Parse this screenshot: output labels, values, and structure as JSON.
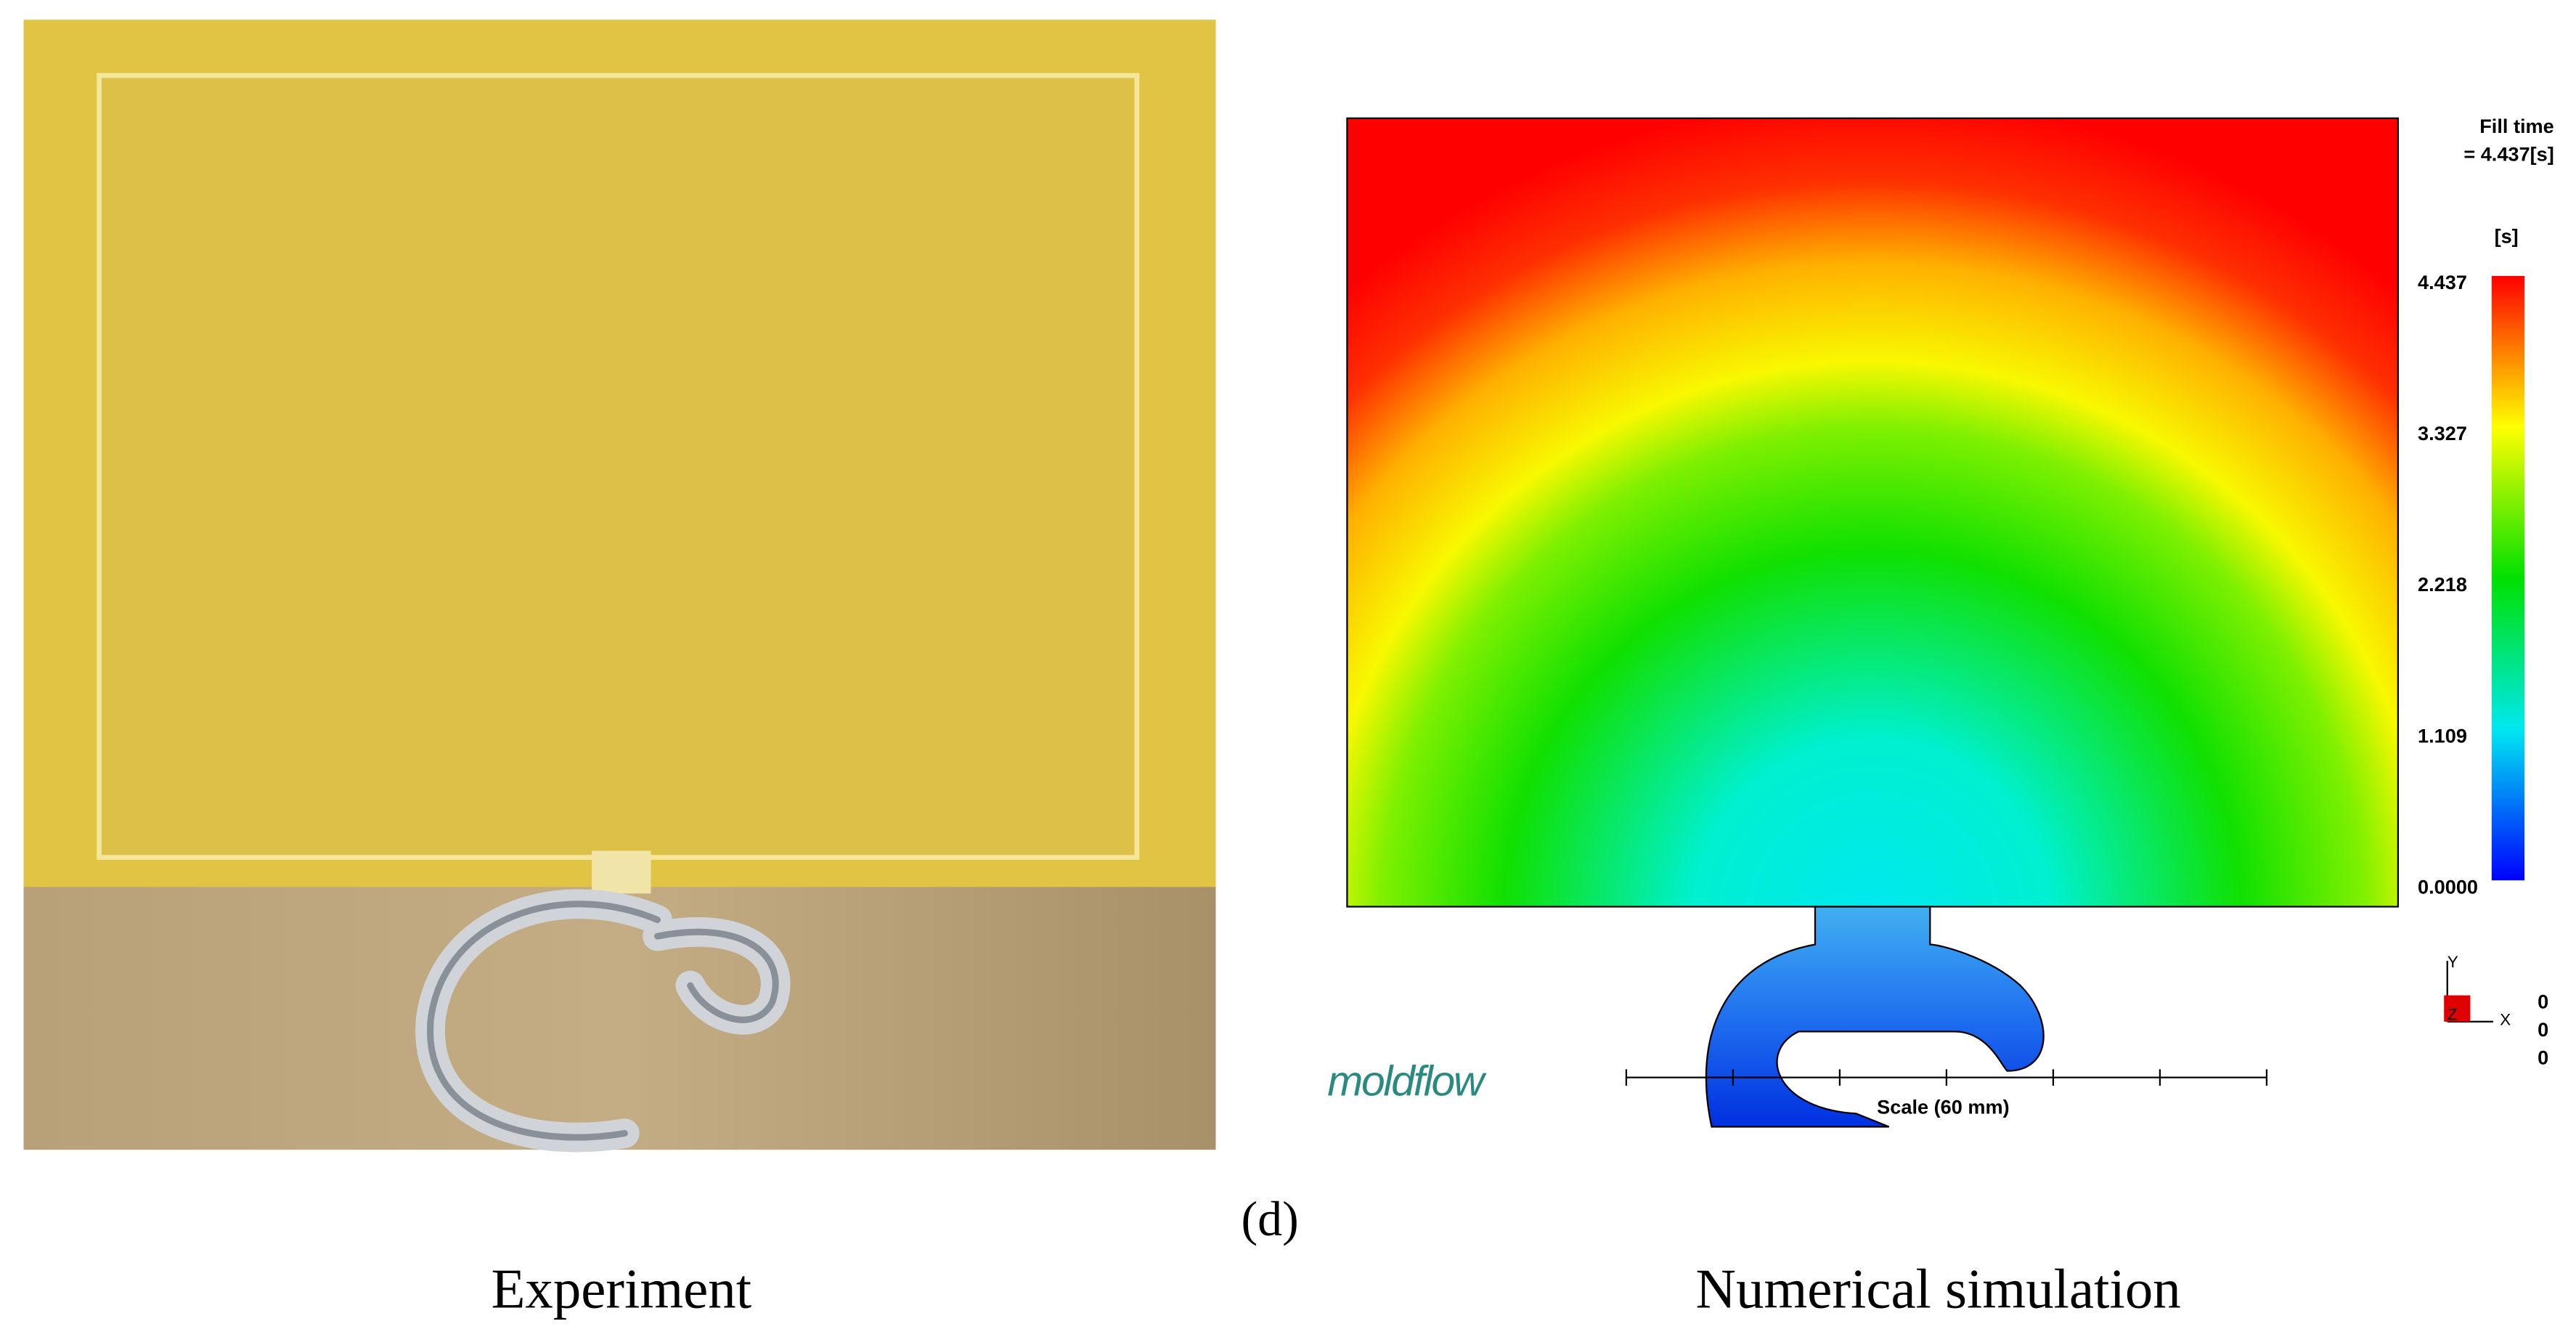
{
  "figure": {
    "label": "(d)",
    "panels": [
      {
        "caption": "Experiment"
      },
      {
        "caption": "Numerical simulation",
        "legend": {
          "title": "Fill time",
          "value": "= 4.437[s]",
          "unit": "[s]",
          "ticks": [
            "4.437",
            "3.327",
            "2.218",
            "1.109",
            "0.0000"
          ]
        },
        "axes": {
          "y": "Y",
          "z": "Z",
          "x": "X",
          "values": [
            "0",
            "0",
            "0"
          ]
        },
        "scale": "Scale (60 mm)",
        "logo": "moldflow"
      }
    ]
  }
}
